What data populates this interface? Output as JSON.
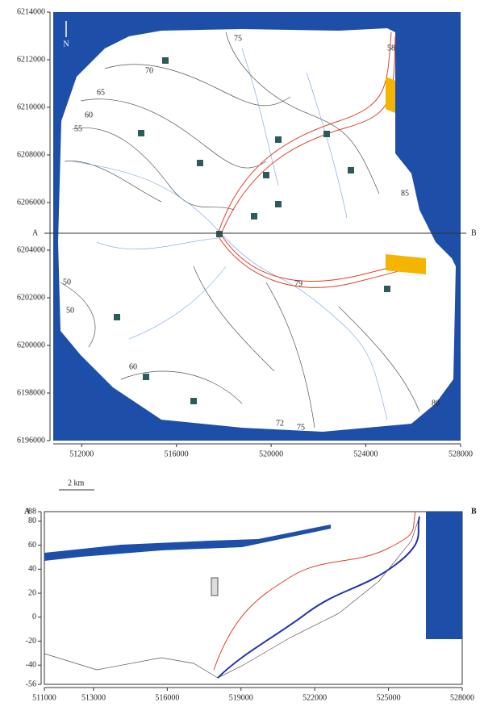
{
  "map": {
    "north": "N",
    "xlim": [
      510800,
      528000
    ],
    "ylim": [
      6196000,
      6214000
    ],
    "xticks": [
      512000,
      516000,
      520000,
      524000,
      528000
    ],
    "yticks": [
      6196000,
      6198000,
      6200000,
      6202000,
      6204000,
      6206000,
      6208000,
      6210000,
      6212000,
      6214000
    ],
    "section_ends": [
      "A",
      "B"
    ],
    "contour_labels": [
      "70",
      "65",
      "60",
      "55",
      "50",
      "75",
      "58",
      "79",
      "80",
      "85",
      "75",
      "72",
      "50",
      "60"
    ]
  },
  "scale_bar": "2 km",
  "section": {
    "ends": [
      "A",
      "B"
    ],
    "xlim": [
      511000,
      528000
    ],
    "ylim": [
      -56,
      88
    ],
    "xticks": [
      511000,
      513000,
      516000,
      519000,
      522000,
      525000,
      528000
    ],
    "yticks": [
      88,
      80,
      60,
      40,
      20,
      0,
      -20,
      -40,
      -56
    ]
  }
}
